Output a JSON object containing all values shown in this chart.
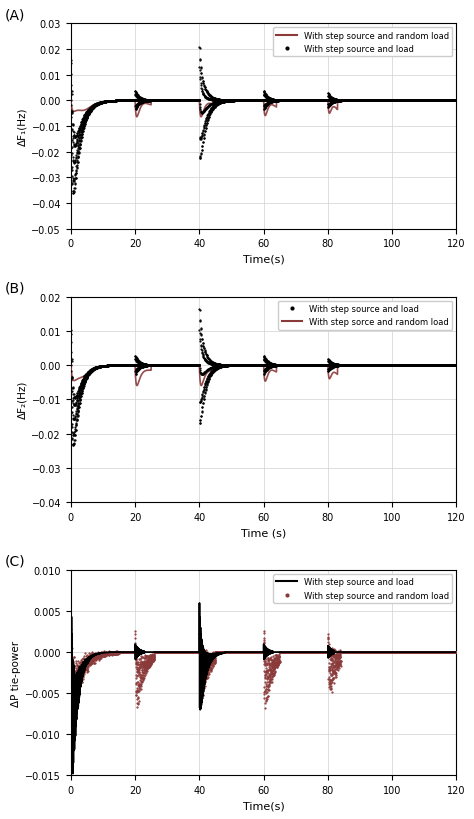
{
  "panels": [
    {
      "label": "(A)",
      "ylabel": "ΔF₁(Hz)",
      "ylim": [
        -0.05,
        0.03
      ],
      "yticks": [
        -0.05,
        -0.04,
        -0.03,
        -0.02,
        -0.01,
        0.0,
        0.01,
        0.02,
        0.03
      ],
      "xlabel": "Time(s)",
      "leg1": "With step source and random load",
      "leg2": "With step source and load",
      "color_random": "#8B3A3A",
      "color_step": "#000000"
    },
    {
      "label": "(B)",
      "ylabel": "ΔF₂(Hz)",
      "ylim": [
        -0.04,
        0.02
      ],
      "yticks": [
        -0.04,
        -0.03,
        -0.02,
        -0.01,
        0.0,
        0.01,
        0.02
      ],
      "xlabel": "Time (s)",
      "leg1": "With step source and load",
      "leg2": "With step sorce and random load",
      "color_random": "#8B3A3A",
      "color_step": "#000000"
    },
    {
      "label": "(C)",
      "ylabel": "ΔP tie-power",
      "ylim": [
        -0.015,
        0.01
      ],
      "yticks": [
        -0.015,
        -0.01,
        -0.005,
        0.0,
        0.005,
        0.01
      ],
      "xlabel": "Time(s)",
      "leg1": "With step source and load",
      "leg2": "With step source and random load",
      "color_random": "#8B3A3A",
      "color_step": "#000000"
    }
  ],
  "xlim": [
    0,
    120
  ],
  "xticks": [
    0,
    20,
    40,
    60,
    80,
    100,
    120
  ],
  "grid_color": "#d0d0d0",
  "bg_color": "#ffffff",
  "fig_width": 4.74,
  "fig_height": 8.2,
  "dpi": 100
}
